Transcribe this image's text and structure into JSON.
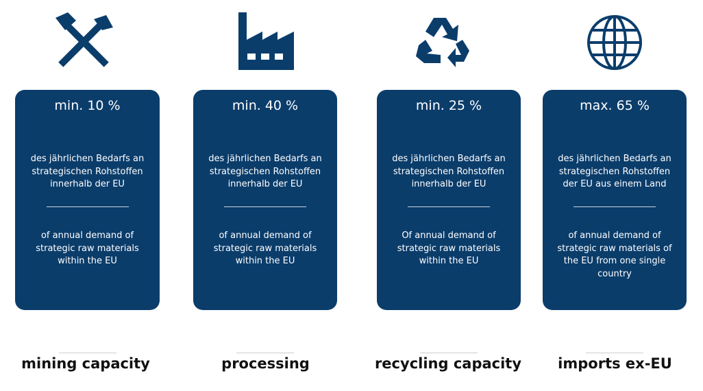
{
  "columns": [
    {
      "headline": "min. 10 %",
      "german": [
        "des jährlichen Bedarfs an",
        "strategischen Rohstoffen",
        "innerhalb der EU"
      ],
      "english": [
        "of annual demand of",
        "strategic raw materials",
        "within the EU"
      ],
      "label": "mining capacity"
    },
    {
      "headline": "min. 40 %",
      "german": [
        "des jährlichen Bedarfs an",
        "strategischen Rohstoffen",
        "innerhalb der EU"
      ],
      "english": [
        "of annual demand of",
        "strategic raw materials",
        "within the EU"
      ],
      "label": "processing"
    },
    {
      "headline": "min. 25 %",
      "german": [
        "des jährlichen Bedarfs an",
        "strategischen Rohstoffen",
        "innerhalb der EU"
      ],
      "english": [
        "Of annual demand of",
        "strategic raw materials",
        "within the EU"
      ],
      "label": "recycling capacity"
    },
    {
      "headline": "max. 65 %",
      "german": [
        "des jährlichen Bedarfs an",
        "strategischen Rohstoffen",
        "der EU aus einem Land"
      ],
      "english": [
        "of annual demand of",
        "strategic raw materials of",
        "the EU from one single",
        "country"
      ],
      "label": "imports ex-EU"
    }
  ]
}
